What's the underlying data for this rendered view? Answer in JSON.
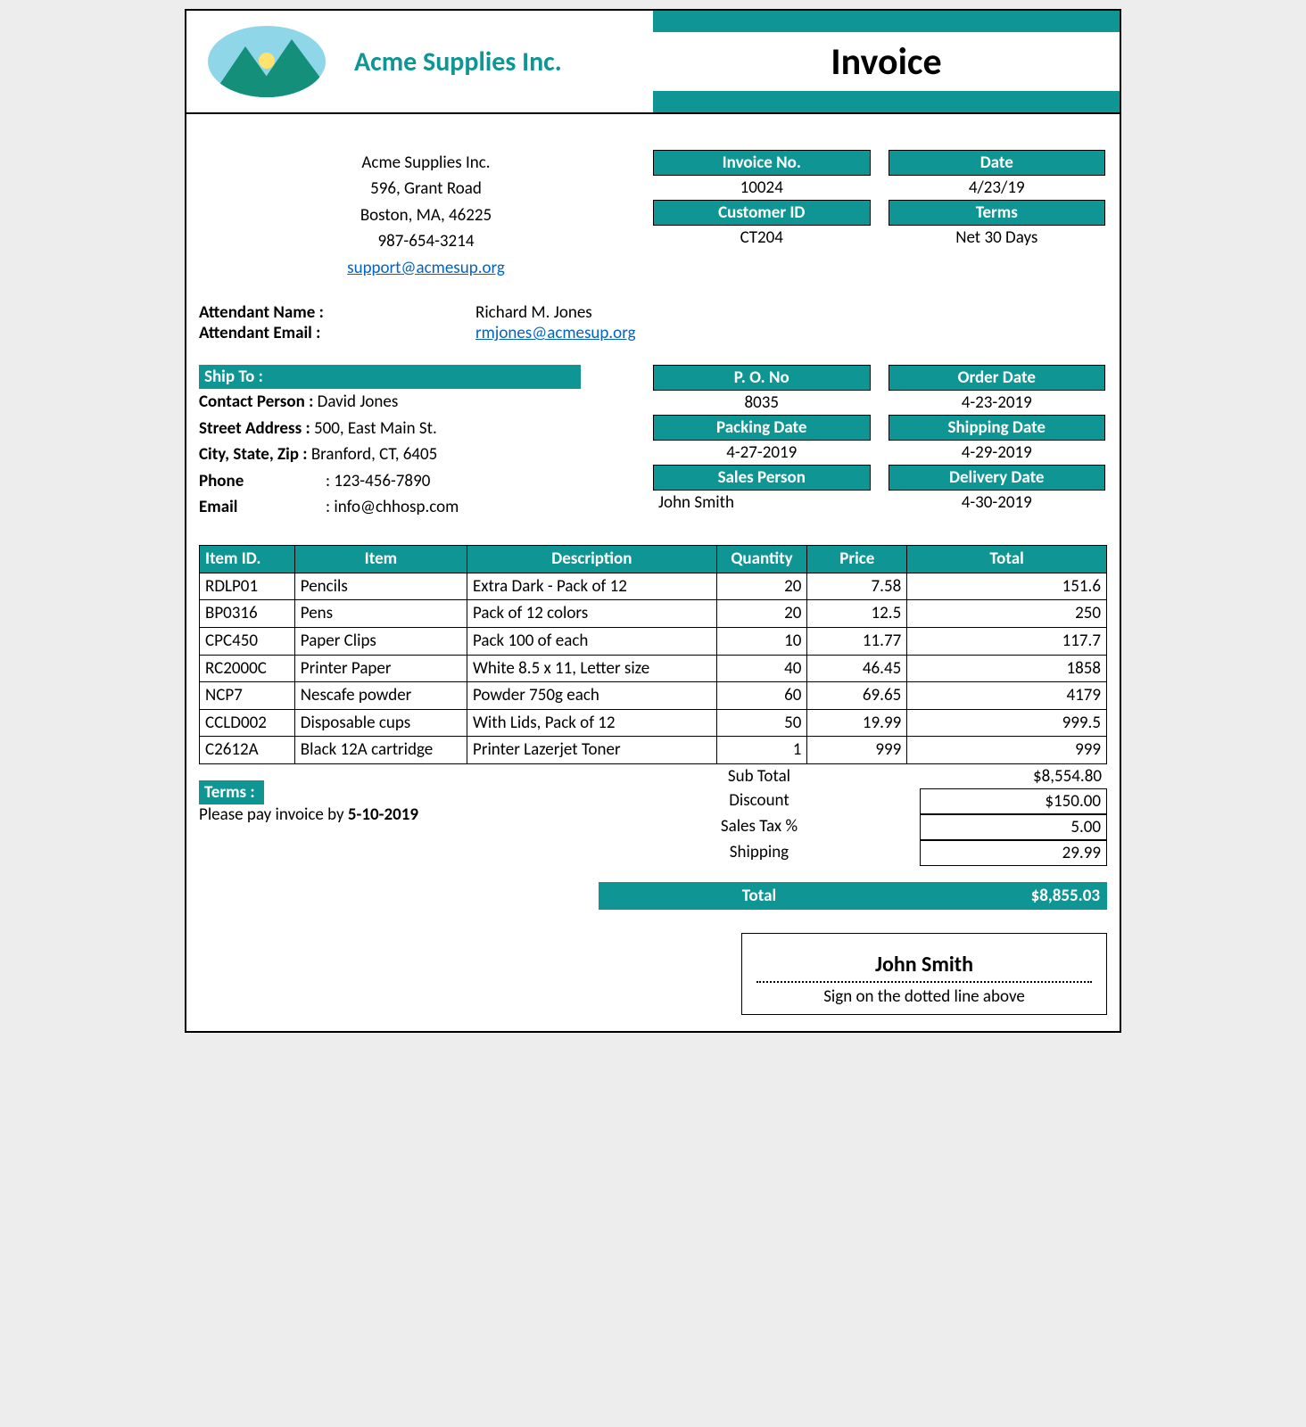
{
  "colors": {
    "teal": "#0e9594",
    "logo_sky": "#8fd6e8",
    "logo_mtn": "#148f7a",
    "logo_sun": "#ffe36e",
    "link": "#0563c1",
    "border": "#000000",
    "page_bg": "#ffffff",
    "outer_bg": "#ededed"
  },
  "header": {
    "company": "Acme Supplies Inc.",
    "doc_title": "Invoice"
  },
  "supplier": {
    "name": "Acme Supplies Inc.",
    "street": "596, Grant Road",
    "city_state_zip": "Boston, MA, 46225",
    "phone": "987-654-3214",
    "email": "support@acmesup.org"
  },
  "invoice_meta": {
    "invoice_no_lbl": "Invoice No.",
    "invoice_no": "10024",
    "date_lbl": "Date",
    "date": "4/23/19",
    "customer_id_lbl": "Customer ID",
    "customer_id": "CT204",
    "terms_lbl": "Terms",
    "terms": "Net 30 Days"
  },
  "attendant": {
    "name_lbl": "Attendant Name :",
    "name": "Richard M. Jones",
    "email_lbl": "Attendant Email :",
    "email": "rmjones@acmesup.org"
  },
  "ship_to": {
    "heading": "Ship To :",
    "contact_lbl": "Contact Person :",
    "contact": "David Jones",
    "street_lbl": "Street Address :",
    "street": "500, East Main St.",
    "csz_lbl": "City, State, Zip  :",
    "csz": "Branford, CT, 6405",
    "phone_lbl": "Phone",
    "phone": "123-456-7890",
    "email_lbl": "Email",
    "email": "info@chhosp.com"
  },
  "order_meta": {
    "po_lbl": "P. O. No",
    "po": "8035",
    "order_date_lbl": "Order Date",
    "order_date": "4-23-2019",
    "packing_date_lbl": "Packing Date",
    "packing_date": "4-27-2019",
    "shipping_date_lbl": "Shipping Date",
    "shipping_date": "4-29-2019",
    "sales_person_lbl": "Sales Person",
    "sales_person": "John Smith",
    "delivery_date_lbl": "Delivery Date",
    "delivery_date": "4-30-2019"
  },
  "items": {
    "columns": {
      "id": "Item ID.",
      "item": "Item",
      "desc": "Description",
      "qty": "Quantity",
      "price": "Price",
      "total": "Total"
    },
    "col_widths_pct": [
      10.5,
      19,
      27.5,
      10,
      11,
      22
    ],
    "rows": [
      {
        "id": "RDLP01",
        "item": "Pencils",
        "desc": "Extra Dark - Pack of 12",
        "qty": "20",
        "price": "7.58",
        "total": "151.6"
      },
      {
        "id": "BP0316",
        "item": "Pens",
        "desc": "Pack of 12 colors",
        "qty": "20",
        "price": "12.5",
        "total": "250"
      },
      {
        "id": "CPC450",
        "item": "Paper Clips",
        "desc": "Pack 100 of each",
        "qty": "10",
        "price": "11.77",
        "total": "117.7"
      },
      {
        "id": "RC2000C",
        "item": "Printer Paper",
        "desc": "White 8.5 x 11, Letter size",
        "qty": "40",
        "price": "46.45",
        "total": "1858"
      },
      {
        "id": "NCP7",
        "item": "Nescafe powder",
        "desc": "Powder 750g each",
        "qty": "60",
        "price": "69.65",
        "total": "4179"
      },
      {
        "id": "CCLD002",
        "item": "Disposable cups",
        "desc": "With Lids, Pack of 12",
        "qty": "50",
        "price": "19.99",
        "total": "999.5"
      },
      {
        "id": "C2612A",
        "item": "Black 12A cartridge",
        "desc": "Printer Lazerjet Toner",
        "qty": "1",
        "price": "999",
        "total": "999"
      }
    ]
  },
  "summary": {
    "subtotal_lbl": "Sub Total",
    "subtotal": "$8,554.80",
    "discount_lbl": "Discount",
    "discount": "$150.00",
    "tax_lbl": "Sales Tax %",
    "tax": "5.00",
    "shipping_lbl": "Shipping",
    "shipping": "29.99",
    "total_lbl": "Total",
    "total": "$8,855.03"
  },
  "terms": {
    "heading": "Terms :",
    "text_prefix": "Please pay invoice by ",
    "due_date": "5-10-2019"
  },
  "signature": {
    "name": "John Smith",
    "instruction": "Sign on the dotted line above"
  }
}
